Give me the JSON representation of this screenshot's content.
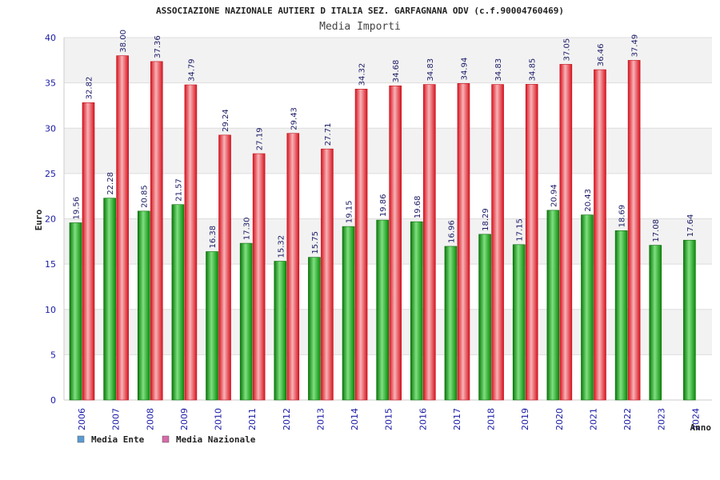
{
  "chart_data": {
    "type": "bar",
    "title": "ASSOCIAZIONE NAZIONALE AUTIERI D ITALIA SEZ. GARFAGNANA ODV (c.f.90004760469)",
    "subtitle": "Media Importi",
    "xlabel": "Anno",
    "ylabel": "Euro",
    "ylim": [
      0,
      40
    ],
    "yticks": [
      0,
      5,
      10,
      15,
      20,
      25,
      30,
      35,
      40
    ],
    "grid": true,
    "legend_position": "bottom-left",
    "categories": [
      "2006",
      "2007",
      "2008",
      "2009",
      "2010",
      "2011",
      "2012",
      "2013",
      "2014",
      "2015",
      "2016",
      "2017",
      "2018",
      "2019",
      "2020",
      "2021",
      "2022",
      "2023",
      "2024"
    ],
    "series": [
      {
        "name": "Media Ente",
        "legend_color": "#5b9bd5",
        "bar_color": "#1aa01a",
        "values": [
          19.56,
          22.28,
          20.85,
          21.57,
          16.38,
          17.3,
          15.32,
          15.75,
          19.15,
          19.86,
          19.68,
          16.96,
          18.29,
          17.15,
          20.94,
          20.43,
          18.69,
          17.08,
          17.64
        ],
        "labels": [
          "19.56",
          "22.28",
          "20.85",
          "21.57",
          "16.38",
          "17.30",
          "15.32",
          "15.75",
          "19.15",
          "19.86",
          "19.68",
          "16.96",
          "18.29",
          "17.15",
          "20.94",
          "20.43",
          "18.69",
          "17.08",
          "17.64"
        ]
      },
      {
        "name": "Media Nazionale",
        "legend_color": "#d86aa8",
        "bar_color": "#e8222e",
        "values": [
          32.82,
          38.0,
          37.36,
          34.79,
          29.24,
          27.19,
          29.43,
          27.71,
          34.32,
          34.68,
          34.83,
          34.94,
          34.83,
          34.85,
          37.05,
          36.46,
          37.49,
          null,
          null
        ],
        "labels": [
          "32.82",
          "38.00",
          "37.36",
          "34.79",
          "29.24",
          "27.19",
          "29.43",
          "27.71",
          "34.32",
          "34.68",
          "34.83",
          "34.94",
          "34.83",
          "34.85",
          "37.05",
          "36.46",
          "37.49",
          "",
          ""
        ]
      }
    ]
  }
}
